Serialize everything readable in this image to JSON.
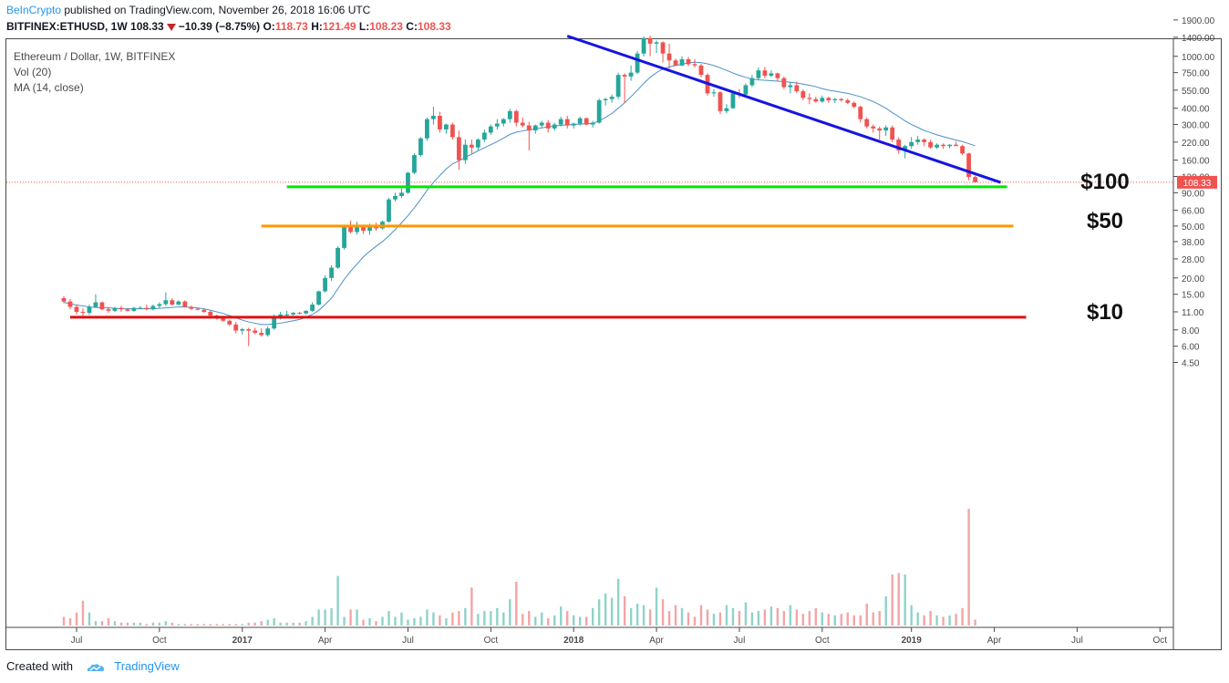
{
  "header": {
    "brand": "BeInCrypto",
    "published": "published on TradingView.com, November 26, 2018 16:06 UTC",
    "symbol": "BITFINEX:ETHUSD, 1W",
    "last": "108.33",
    "change": "−10.39 (−8.75%)",
    "o_label": "O:",
    "o": "118.73",
    "h_label": "H:",
    "h": "121.49",
    "l_label": "L:",
    "l": "108.23",
    "c_label": "C:",
    "c": "108.33"
  },
  "legend": {
    "title": "Ethereum / Dollar, 1W, BITFINEX",
    "vol": "Vol (20)",
    "ma": "MA (14, close)"
  },
  "footer": {
    "created": "Created with",
    "tv": "TradingView"
  },
  "chart_data": {
    "type": "candlestick",
    "scale": "log",
    "title": "Ethereum / Dollar, 1W, BITFINEX",
    "y_ticks": [
      4.5,
      6,
      8,
      11,
      15,
      20,
      28,
      38,
      50,
      66,
      90,
      120,
      160,
      220,
      300,
      400,
      550,
      750,
      1000,
      1400,
      1900
    ],
    "y_tick_labels": [
      "4.50",
      "6.00",
      "8.00",
      "11.00",
      "15.00",
      "20.00",
      "28.00",
      "38.00",
      "50.00",
      "66.00",
      "90.00",
      "120.00",
      "160.00",
      "220.00",
      "300.00",
      "400.00",
      "550.00",
      "750.00",
      "1000.00",
      "1400.00",
      "1900.00"
    ],
    "x_tick_labels": [
      "Jul",
      "Oct",
      "2017",
      "Apr",
      "Jul",
      "Oct",
      "2018",
      "Apr",
      "Jul",
      "Oct",
      "2019",
      "Apr",
      "Jul",
      "Oct"
    ],
    "last_price_label": "108.33",
    "last_price": 108.33,
    "levels": [
      {
        "label": "$100",
        "value": 100,
        "color": "#00e600",
        "start_week": 35,
        "end_week": 148
      },
      {
        "label": "$50",
        "value": 50,
        "color": "#ff9800",
        "start_week": 31,
        "end_week": 149
      },
      {
        "label": "$10",
        "value": 10,
        "color": "#e01010",
        "start_week": 1,
        "end_week": 151
      }
    ],
    "trendline": {
      "color": "#1515e0",
      "start_week": 79,
      "start_value": 1430,
      "end_week": 147,
      "end_value": 108
    },
    "ohlc": [
      [
        14.0,
        14.5,
        12.8,
        13.2
      ],
      [
        13.2,
        13.8,
        11.5,
        12.0
      ],
      [
        12.0,
        12.5,
        10.5,
        11.0
      ],
      [
        11.0,
        11.7,
        10.2,
        10.8
      ],
      [
        10.8,
        12.5,
        10.4,
        12.0
      ],
      [
        12.0,
        15.0,
        11.8,
        13.0
      ],
      [
        13.0,
        13.2,
        11.3,
        11.5
      ],
      [
        11.5,
        12.0,
        10.8,
        11.2
      ],
      [
        11.2,
        12.0,
        11.0,
        11.8
      ],
      [
        11.8,
        12.2,
        11.0,
        11.5
      ],
      [
        11.5,
        11.8,
        11.1,
        11.2
      ],
      [
        11.2,
        12.0,
        11.0,
        11.8
      ],
      [
        11.8,
        12.2,
        11.5,
        11.8
      ],
      [
        11.8,
        12.5,
        11.3,
        11.5
      ],
      [
        11.5,
        12.5,
        11.3,
        12.2
      ],
      [
        12.2,
        13.0,
        11.8,
        12.6
      ],
      [
        12.6,
        15.5,
        12.2,
        13.5
      ],
      [
        13.5,
        14.0,
        12.3,
        12.5
      ],
      [
        12.5,
        13.5,
        12.3,
        13.2
      ],
      [
        13.2,
        13.5,
        11.9,
        12.0
      ],
      [
        12.0,
        12.3,
        11.4,
        11.6
      ],
      [
        11.6,
        11.8,
        11.3,
        11.4
      ],
      [
        11.4,
        11.6,
        10.8,
        11.0
      ],
      [
        11.0,
        11.2,
        10.1,
        10.3
      ],
      [
        10.3,
        10.5,
        9.6,
        9.8
      ],
      [
        9.8,
        10.0,
        9.2,
        9.4
      ],
      [
        9.4,
        9.6,
        8.6,
        8.8
      ],
      [
        8.8,
        9.2,
        7.5,
        7.9
      ],
      [
        7.9,
        8.3,
        7.4,
        8.1
      ],
      [
        8.1,
        8.3,
        6.0,
        7.9
      ],
      [
        7.9,
        8.3,
        7.4,
        7.6
      ],
      [
        7.6,
        8.2,
        7.1,
        7.3
      ],
      [
        7.3,
        8.5,
        7.1,
        8.2
      ],
      [
        8.2,
        10.5,
        8.0,
        10.0
      ],
      [
        10.0,
        11.0,
        9.6,
        10.5
      ],
      [
        10.5,
        11.2,
        10.0,
        10.5
      ],
      [
        10.5,
        11.0,
        10.3,
        10.8
      ],
      [
        10.8,
        11.0,
        10.5,
        10.7
      ],
      [
        10.7,
        11.3,
        10.5,
        11.2
      ],
      [
        11.2,
        13.0,
        11.0,
        12.5
      ],
      [
        12.5,
        16.0,
        12.3,
        15.8
      ],
      [
        15.8,
        21.0,
        15.5,
        20.0
      ],
      [
        20.0,
        25.0,
        19.0,
        24.0
      ],
      [
        24.0,
        35.0,
        23.5,
        34.0
      ],
      [
        34.0,
        50.0,
        33.0,
        49.0
      ],
      [
        49.0,
        55.0,
        44.0,
        45.0
      ],
      [
        45.0,
        54.0,
        43.0,
        50.0
      ],
      [
        50.0,
        50.5,
        43.5,
        46.0
      ],
      [
        46.0,
        52.0,
        43.0,
        50.0
      ],
      [
        50.0,
        53.0,
        46.0,
        48.0
      ],
      [
        48.0,
        55.0,
        47.0,
        54.0
      ],
      [
        54.0,
        82.0,
        53.0,
        80.0
      ],
      [
        80.0,
        90.0,
        77.0,
        85.0
      ],
      [
        85.0,
        97.0,
        82.0,
        90.0
      ],
      [
        90.0,
        130.0,
        88.0,
        128.0
      ],
      [
        128.0,
        180.0,
        125.0,
        175.0
      ],
      [
        175.0,
        240.0,
        170.0,
        235.0
      ],
      [
        235.0,
        340.0,
        225.0,
        330.0
      ],
      [
        330.0,
        410.0,
        300.0,
        350.0
      ],
      [
        350.0,
        375.0,
        260.0,
        275.0
      ],
      [
        275.0,
        305.0,
        255.0,
        300.0
      ],
      [
        300.0,
        310.0,
        230.0,
        240.0
      ],
      [
        240.0,
        270.0,
        135.0,
        160.0
      ],
      [
        160.0,
        230.0,
        150.0,
        210.0
      ],
      [
        210.0,
        230.0,
        180.0,
        200.0
      ],
      [
        200.0,
        235.0,
        190.0,
        230.0
      ],
      [
        230.0,
        275.0,
        220.0,
        260.0
      ],
      [
        260.0,
        300.0,
        250.0,
        290.0
      ],
      [
        290.0,
        330.0,
        275.0,
        305.0
      ],
      [
        305.0,
        335.0,
        290.0,
        330.0
      ],
      [
        330.0,
        395.0,
        310.0,
        380.0
      ],
      [
        380.0,
        390.0,
        290.0,
        310.0
      ],
      [
        310.0,
        340.0,
        285.0,
        295.0
      ],
      [
        295.0,
        315.0,
        190.0,
        270.0
      ],
      [
        270.0,
        300.0,
        255.0,
        295.0
      ],
      [
        295.0,
        320.0,
        280.0,
        310.0
      ],
      [
        310.0,
        325.0,
        260.0,
        280.0
      ],
      [
        280.0,
        310.0,
        270.0,
        300.0
      ],
      [
        300.0,
        345.0,
        290.0,
        330.0
      ],
      [
        330.0,
        350.0,
        280.0,
        295.0
      ],
      [
        295.0,
        310.0,
        280.0,
        305.0
      ],
      [
        305.0,
        345.0,
        295.0,
        335.0
      ],
      [
        335.0,
        340.0,
        295.0,
        300.0
      ],
      [
        300.0,
        320.0,
        285.0,
        310.0
      ],
      [
        310.0,
        475.0,
        305.0,
        460.0
      ],
      [
        460.0,
        480.0,
        420.0,
        470.0
      ],
      [
        470.0,
        510.0,
        440.0,
        490.0
      ],
      [
        490.0,
        750.0,
        470.0,
        720.0
      ],
      [
        720.0,
        740.0,
        440.0,
        700.0
      ],
      [
        700.0,
        850.0,
        650.0,
        750.0
      ],
      [
        750.0,
        1100.0,
        730.0,
        1050.0
      ],
      [
        1050.0,
        1420.0,
        1000.0,
        1380.0
      ],
      [
        1380.0,
        1440.0,
        1000.0,
        1250.0
      ],
      [
        1250.0,
        1320.0,
        1060.0,
        1280.0
      ],
      [
        1280.0,
        1300.0,
        900.0,
        1050.0
      ],
      [
        1050.0,
        1250.0,
        800.0,
        930.0
      ],
      [
        930.0,
        960.0,
        860.0,
        850.0
      ],
      [
        850.0,
        1000.0,
        840.0,
        950.0
      ],
      [
        950.0,
        990.0,
        840.0,
        870.0
      ],
      [
        870.0,
        950.0,
        820.0,
        850.0
      ],
      [
        850.0,
        880.0,
        690.0,
        720.0
      ],
      [
        720.0,
        740.0,
        500.0,
        520.0
      ],
      [
        520.0,
        560.0,
        490.0,
        530.0
      ],
      [
        530.0,
        540.0,
        360.0,
        380.0
      ],
      [
        380.0,
        430.0,
        365.0,
        400.0
      ],
      [
        400.0,
        540.0,
        395.0,
        520.0
      ],
      [
        520.0,
        560.0,
        480.0,
        510.0
      ],
      [
        510.0,
        620.0,
        500.0,
        600.0
      ],
      [
        600.0,
        720.0,
        580.0,
        680.0
      ],
      [
        680.0,
        820.0,
        660.0,
        780.0
      ],
      [
        780.0,
        830.0,
        680.0,
        710.0
      ],
      [
        710.0,
        780.0,
        690.0,
        740.0
      ],
      [
        740.0,
        750.0,
        640.0,
        680.0
      ],
      [
        680.0,
        700.0,
        560.0,
        580.0
      ],
      [
        580.0,
        640.0,
        520.0,
        600.0
      ],
      [
        600.0,
        640.0,
        520.0,
        540.0
      ],
      [
        540.0,
        560.0,
        460.0,
        480.0
      ],
      [
        480.0,
        520.0,
        430.0,
        470.0
      ],
      [
        470.0,
        490.0,
        440.0,
        450.0
      ],
      [
        450.0,
        500.0,
        440.0,
        480.0
      ],
      [
        480.0,
        490.0,
        440.0,
        460.0
      ],
      [
        460.0,
        480.0,
        440.0,
        470.0
      ],
      [
        470.0,
        480.0,
        450.0,
        460.0
      ],
      [
        460.0,
        475.0,
        430.0,
        440.0
      ],
      [
        440.0,
        450.0,
        400.0,
        410.0
      ],
      [
        410.0,
        420.0,
        310.0,
        330.0
      ],
      [
        330.0,
        340.0,
        280.0,
        290.0
      ],
      [
        290.0,
        300.0,
        260.0,
        280.0
      ],
      [
        280.0,
        290.0,
        230.0,
        270.0
      ],
      [
        270.0,
        295.0,
        245.0,
        285.0
      ],
      [
        285.0,
        295.0,
        220.0,
        230.0
      ],
      [
        230.0,
        240.0,
        180.0,
        190.0
      ],
      [
        190.0,
        210.0,
        165.0,
        205.0
      ],
      [
        205.0,
        240.0,
        195.0,
        220.0
      ],
      [
        220.0,
        245.0,
        210.0,
        230.0
      ],
      [
        230.0,
        235.0,
        205.0,
        220.0
      ],
      [
        220.0,
        230.0,
        195.0,
        200.0
      ],
      [
        200.0,
        215.0,
        195.0,
        210.0
      ],
      [
        210.0,
        215.0,
        195.0,
        205.0
      ],
      [
        205.0,
        212.0,
        197.0,
        210.0
      ],
      [
        210.0,
        222.0,
        205.0,
        205.0
      ],
      [
        205.0,
        210.0,
        175.0,
        180.0
      ],
      [
        180.0,
        182.0,
        112.0,
        118.73
      ],
      [
        118.73,
        121.49,
        108.23,
        108.33
      ]
    ],
    "ma14": [
      13.0,
      12.7,
      12.4,
      12.2,
      12.0,
      11.9,
      11.8,
      11.8,
      11.7,
      11.6,
      11.6,
      11.6,
      11.6,
      11.6,
      11.6,
      11.7,
      11.8,
      11.9,
      12.0,
      12.0,
      11.9,
      11.8,
      11.6,
      11.3,
      11.0,
      10.7,
      10.3,
      9.9,
      9.5,
      9.2,
      9.0,
      8.8,
      8.8,
      8.9,
      9.0,
      9.2,
      9.4,
      9.6,
      10.0,
      10.5,
      11.3,
      12.5,
      14.0,
      16.5,
      19.5,
      22.5,
      25.5,
      29.0,
      32.0,
      35.0,
      38.0,
      42.0,
      47.0,
      53.0,
      60.0,
      69.0,
      80.0,
      94.0,
      108.0,
      122.0,
      137.0,
      150.0,
      158.0,
      168.0,
      178.0,
      189.0,
      199.0,
      210.0,
      222.0,
      236.0,
      252.0,
      262.0,
      268.0,
      273.0,
      278.0,
      283.0,
      288.0,
      292.0,
      296.0,
      298.0,
      300.0,
      302.0,
      304.0,
      306.0,
      320.0,
      340.0,
      365.0,
      400.0,
      440.0,
      490.0,
      550.0,
      620.0,
      690.0,
      750.0,
      800.0,
      830.0,
      850.0,
      870.0,
      890.0,
      900.0,
      895.0,
      875.0,
      850.0,
      815.0,
      780.0,
      745.0,
      715.0,
      690.0,
      670.0,
      660.0,
      655.0,
      650.0,
      645.0,
      640.0,
      632.0,
      625.0,
      612.0,
      600.0,
      585.0,
      565.0,
      550.0,
      540.0,
      530.0,
      520.0,
      505.0,
      490.0,
      470.0,
      450.0,
      425.0,
      400.0,
      370.0,
      345.0,
      320.0,
      300.0,
      285.0,
      270.0,
      260.0,
      250.0,
      242.0,
      235.0,
      228.0,
      222.0,
      214.0,
      206.0
    ],
    "volume_pct": [
      6,
      5,
      9,
      17,
      9,
      3,
      3,
      5,
      3,
      2,
      2,
      2,
      2,
      1,
      2,
      2,
      3,
      2,
      1,
      1,
      1,
      1,
      1,
      1,
      1,
      1,
      1,
      1,
      1,
      2,
      2,
      3,
      4,
      5,
      2,
      2,
      2,
      2,
      3,
      6,
      11,
      11,
      12,
      34,
      6,
      11,
      11,
      4,
      5,
      3,
      6,
      10,
      6,
      9,
      4,
      5,
      6,
      11,
      9,
      7,
      5,
      9,
      10,
      12,
      26,
      8,
      10,
      10,
      12,
      9,
      18,
      30,
      8,
      10,
      6,
      9,
      5,
      7,
      13,
      10,
      7,
      6,
      6,
      12,
      18,
      22,
      19,
      32,
      20,
      12,
      15,
      14,
      11,
      26,
      18,
      10,
      14,
      12,
      9,
      6,
      14,
      11,
      8,
      9,
      14,
      12,
      10,
      16,
      9,
      10,
      11,
      13,
      12,
      10,
      14,
      11,
      8,
      10,
      12,
      9,
      8,
      7,
      8,
      9,
      7,
      7,
      15,
      9,
      10,
      20,
      35,
      36,
      35,
      14,
      9,
      7,
      10,
      7,
      6,
      7,
      8,
      12,
      80,
      4
    ],
    "volume_scale_note": "volume bars as % of max"
  }
}
